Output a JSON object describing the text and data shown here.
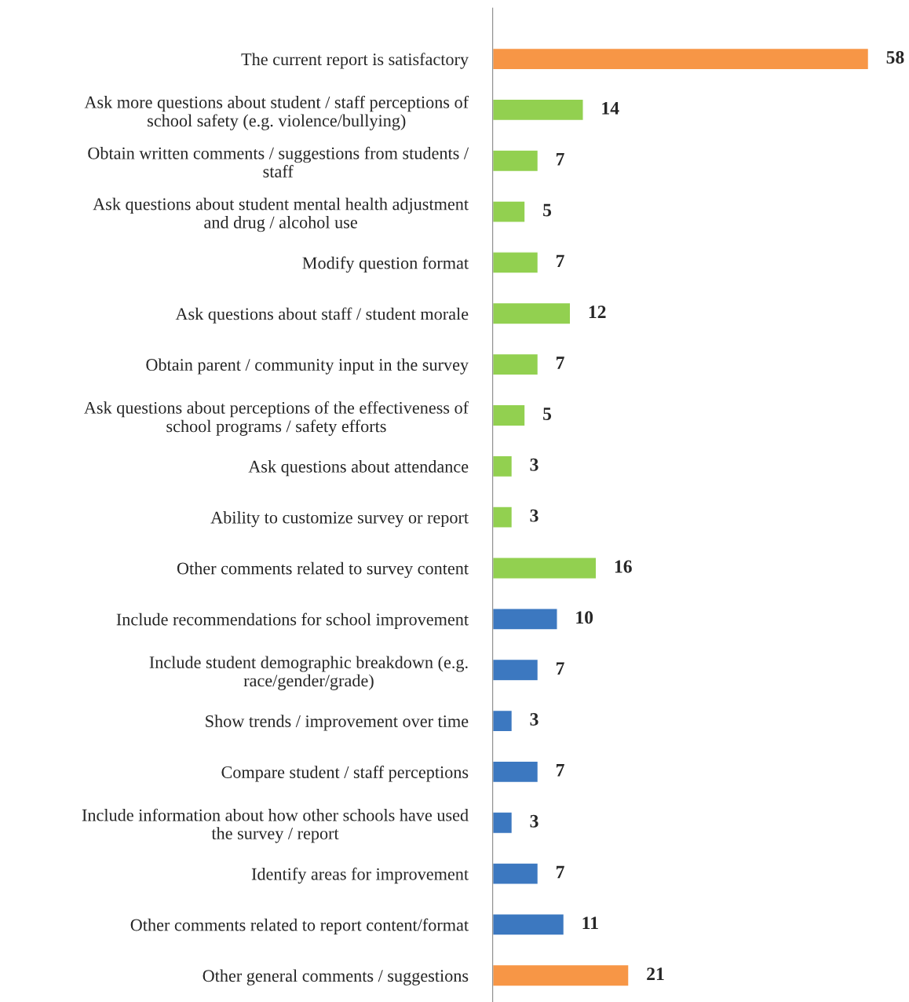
{
  "chart_data": {
    "type": "bar",
    "orientation": "horizontal",
    "data_labels": true,
    "grid": false,
    "legend": false,
    "categories": [
      "The current report is satisfactory",
      "Ask more questions about student / staff perceptions of\nschool safety (e.g. violence/bullying)",
      "Obtain written comments / suggestions from students /\nstaff",
      "Ask questions about student mental health adjustment\nand drug / alcohol use",
      "Modify question format",
      "Ask questions about staff / student morale",
      "Obtain parent / community input in the survey",
      "Ask questions about perceptions of the effectiveness of\nschool programs / safety efforts",
      "Ask questions about attendance",
      "Ability to customize survey or report",
      "Other comments related to survey content",
      "Include recommendations for school improvement",
      "Include student demographic breakdown (e.g.\nrace/gender/grade)",
      "Show trends / improvement over time",
      "Compare student / staff perceptions",
      "Include information about how other schools have used\nthe survey / report",
      "Identify areas for improvement",
      "Other comments related to report content/format",
      "Other general comments / suggestions"
    ],
    "values": [
      58,
      14,
      7,
      5,
      7,
      12,
      7,
      5,
      3,
      3,
      16,
      10,
      7,
      3,
      7,
      3,
      7,
      11,
      21
    ],
    "colors": [
      "#f79646",
      "#92d050",
      "#92d050",
      "#92d050",
      "#92d050",
      "#92d050",
      "#92d050",
      "#92d050",
      "#92d050",
      "#92d050",
      "#92d050",
      "#3c78c0",
      "#3c78c0",
      "#3c78c0",
      "#3c78c0",
      "#3c78c0",
      "#3c78c0",
      "#3c78c0",
      "#f79646"
    ]
  }
}
